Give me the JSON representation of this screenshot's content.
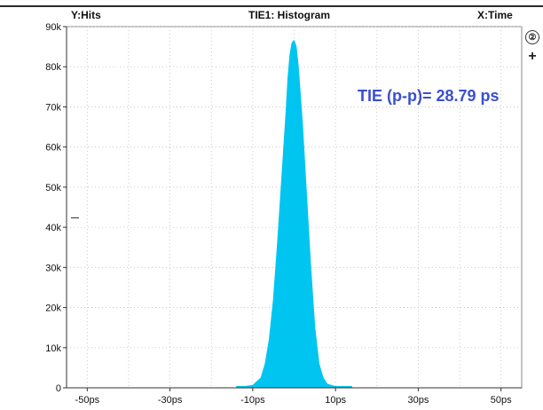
{
  "header": {
    "y_axis_label": "Y:Hits",
    "title": "TIE1: Histogram",
    "x_axis_label": "X:Time"
  },
  "side_controls": {
    "channel_badge": "②",
    "add_button": "+"
  },
  "annotation": "TIE (p-p)= 28.79 ps",
  "colors": {
    "fill": "#00c5f0",
    "annotation": "#3b4fcf",
    "grid": "#bdbdbd"
  },
  "chart_data": {
    "type": "area",
    "title": "TIE1: Histogram",
    "xlabel": "X:Time",
    "ylabel": "Y:Hits",
    "x_unit": "ps",
    "xlim": [
      -55,
      55
    ],
    "ylim": [
      0,
      90000
    ],
    "x_ticks": [
      -50,
      -30,
      -10,
      10,
      30,
      50
    ],
    "x_tick_labels": [
      "-50ps",
      "-30ps",
      "-10ps",
      "10ps",
      "30ps",
      "50ps"
    ],
    "y_ticks": [
      0,
      10000,
      20000,
      30000,
      40000,
      50000,
      60000,
      70000,
      80000,
      90000
    ],
    "y_tick_labels": [
      "0",
      "10k",
      "20k",
      "30k",
      "40k",
      "50k",
      "60k",
      "70k",
      "80k",
      "90k"
    ],
    "grid": true,
    "x": [
      -14,
      -12,
      -10,
      -8,
      -7,
      -6,
      -5,
      -4,
      -3,
      -2,
      -1.5,
      -1,
      -0.5,
      0,
      0.5,
      1,
      2,
      3,
      4,
      5,
      6,
      7,
      8,
      10,
      12,
      14
    ],
    "y": [
      0,
      300,
      600,
      2500,
      6000,
      12000,
      22000,
      36000,
      52000,
      68000,
      77000,
      83000,
      86000,
      86500,
      85000,
      80000,
      66000,
      48000,
      30000,
      15000,
      6000,
      2500,
      900,
      300,
      100,
      0
    ],
    "annotations": [
      "TIE (p-p)= 28.79 ps"
    ]
  }
}
